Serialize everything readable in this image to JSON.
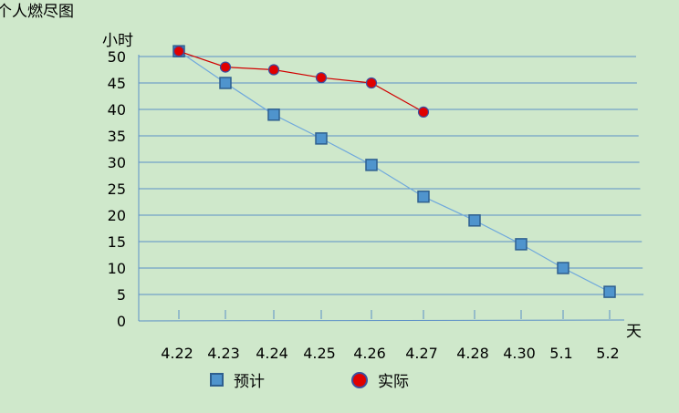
{
  "chart_data": {
    "type": "line",
    "title": "个人燃尽图",
    "ylabel": "小时",
    "xlabel": "天",
    "categories": [
      "4.22",
      "4.23",
      "4.24",
      "4.25",
      "4.26",
      "4.27",
      "4.28",
      "4.30",
      "5.1",
      "5.2"
    ],
    "yticks": [
      0,
      5,
      10,
      15,
      20,
      25,
      30,
      35,
      40,
      45,
      50
    ],
    "ylim": [
      0,
      50
    ],
    "grid": true,
    "legend_position": "bottom",
    "series": [
      {
        "name": "预计",
        "marker": "square",
        "color": "#4f94cd",
        "line_color": "#6fa8dc",
        "values": [
          51,
          45,
          39,
          34.5,
          29.5,
          23.5,
          19,
          14.5,
          10,
          5.5
        ]
      },
      {
        "name": "实际",
        "marker": "circle",
        "color": "#e00000",
        "line_color": "#d00000",
        "values": [
          51,
          48,
          47.5,
          46,
          45,
          39.5,
          null,
          null,
          null,
          null
        ]
      }
    ]
  }
}
